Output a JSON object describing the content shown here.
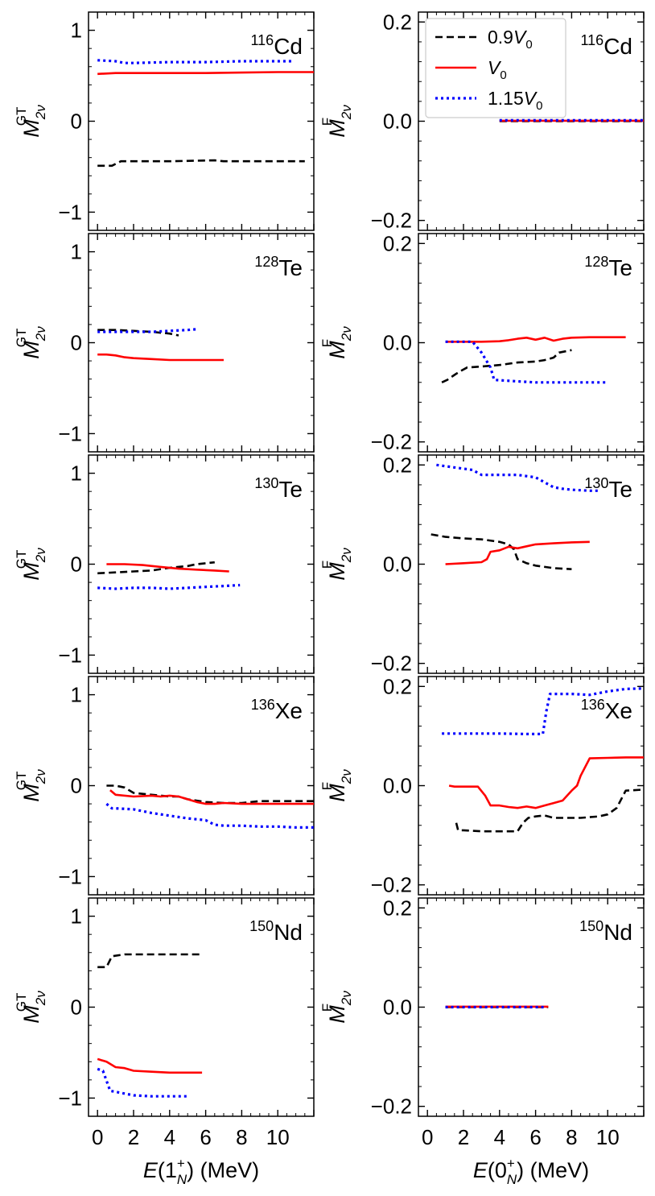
{
  "figure": {
    "left_xlabel": "E(1N+) (MeV)",
    "right_xlabel": "E(0N+) (MeV)",
    "left_ylabel": "M2νGT",
    "right_ylabel": "M2νF",
    "left_xticks": [
      "0",
      "2",
      "4",
      "6",
      "8",
      "10"
    ],
    "right_xticks": [
      "0",
      "2",
      "4",
      "6",
      "8",
      "10"
    ],
    "left_yticks": [
      "−1",
      "0",
      "1"
    ],
    "right_yticks": [
      "−0.2",
      "0.0",
      "0.2"
    ]
  },
  "legend": {
    "placement": "top-right panel, upper left",
    "entries": [
      {
        "label": "0.9V0",
        "series": "0.9V0"
      },
      {
        "label": "V0",
        "series": "V0"
      },
      {
        "label": "1.15V0",
        "series": "1.15V0"
      }
    ]
  },
  "series_styles": {
    "0.9V0": {
      "color": "#000000",
      "dash": "9,5",
      "width": 2.6
    },
    "V0": {
      "color": "#ff0000",
      "dash": "",
      "width": 2.6
    },
    "1.15V0": {
      "color": "#0000ff",
      "dash": "3,4",
      "width": 3.2
    }
  },
  "chart_data": [
    {
      "type": "line",
      "panel": "left",
      "row": 0,
      "nucleus": "116Cd",
      "mass": "116",
      "element": "Cd",
      "xlabel": "E(1N+) (MeV)",
      "ylabel": "M2νGT",
      "xlim": [
        -0.5,
        12
      ],
      "ylim": [
        -1.2,
        1.2
      ],
      "series": [
        {
          "name": "0.9V0",
          "x": [
            0,
            0.8,
            1.3,
            2,
            4,
            6.5,
            7,
            11.5
          ],
          "y": [
            -0.49,
            -0.49,
            -0.44,
            -0.44,
            -0.44,
            -0.43,
            -0.44,
            -0.44
          ]
        },
        {
          "name": "V0",
          "x": [
            0,
            1,
            2,
            4,
            6,
            8,
            10,
            12
          ],
          "y": [
            0.52,
            0.53,
            0.53,
            0.53,
            0.53,
            0.535,
            0.54,
            0.54
          ]
        },
        {
          "name": "1.15V0",
          "x": [
            0,
            1,
            1.5,
            2,
            4,
            6,
            8,
            10.8
          ],
          "y": [
            0.67,
            0.66,
            0.64,
            0.64,
            0.65,
            0.65,
            0.66,
            0.66
          ]
        }
      ]
    },
    {
      "type": "line",
      "panel": "right",
      "row": 0,
      "nucleus": "116Cd",
      "mass": "116",
      "element": "Cd",
      "xlabel": "E(0N+) (MeV)",
      "ylabel": "M2νF",
      "xlim": [
        -0.5,
        12
      ],
      "ylim": [
        -0.22,
        0.22
      ],
      "series": [
        {
          "name": "0.9V0",
          "x": [
            4.0,
            12
          ],
          "y": [
            0.0,
            0.0
          ]
        },
        {
          "name": "V0",
          "x": [
            4.0,
            12
          ],
          "y": [
            0.001,
            0.001
          ]
        },
        {
          "name": "1.15V0",
          "x": [
            4.0,
            12
          ],
          "y": [
            0.002,
            0.002
          ]
        }
      ]
    },
    {
      "type": "line",
      "panel": "left",
      "row": 1,
      "nucleus": "128Te",
      "mass": "128",
      "element": "Te",
      "xlabel": "E(1N+) (MeV)",
      "ylabel": "M2νGT",
      "xlim": [
        -0.5,
        12
      ],
      "ylim": [
        -1.2,
        1.2
      ],
      "series": [
        {
          "name": "0.9V0",
          "x": [
            0,
            1,
            2,
            3,
            4,
            4.5
          ],
          "y": [
            0.14,
            0.14,
            0.13,
            0.12,
            0.1,
            0.08
          ]
        },
        {
          "name": "V0",
          "x": [
            0,
            0.5,
            1,
            1.5,
            2,
            3,
            4,
            5,
            6,
            7
          ],
          "y": [
            -0.13,
            -0.13,
            -0.14,
            -0.16,
            -0.17,
            -0.18,
            -0.19,
            -0.19,
            -0.19,
            -0.19
          ]
        },
        {
          "name": "1.15V0",
          "x": [
            0,
            1,
            2,
            3,
            4,
            5,
            5.6
          ],
          "y": [
            0.12,
            0.12,
            0.12,
            0.12,
            0.13,
            0.14,
            0.15
          ]
        }
      ]
    },
    {
      "type": "line",
      "panel": "right",
      "row": 1,
      "nucleus": "128Te",
      "mass": "128",
      "element": "Te",
      "xlabel": "E(0N+) (MeV)",
      "ylabel": "M2νF",
      "xlim": [
        -0.5,
        12
      ],
      "ylim": [
        -0.22,
        0.22
      ],
      "series": [
        {
          "name": "0.9V0",
          "x": [
            0.8,
            1.1,
            1.3,
            1.5,
            1.8,
            2.2,
            3,
            4,
            5,
            6,
            6.5,
            7,
            7.3,
            8
          ],
          "y": [
            -0.08,
            -0.075,
            -0.07,
            -0.065,
            -0.058,
            -0.05,
            -0.048,
            -0.045,
            -0.04,
            -0.038,
            -0.035,
            -0.03,
            -0.02,
            -0.015
          ]
        },
        {
          "name": "V0",
          "x": [
            1,
            2,
            3,
            4,
            4.5,
            5,
            5.5,
            6,
            6.5,
            7,
            7.5,
            8,
            9,
            10,
            11
          ],
          "y": [
            0.002,
            0.002,
            0.002,
            0.003,
            0.005,
            0.008,
            0.01,
            0.006,
            0.01,
            0.004,
            0.008,
            0.01,
            0.011,
            0.011,
            0.011
          ]
        },
        {
          "name": "1.15V0",
          "x": [
            1,
            2.5,
            3,
            3.5,
            3.7,
            5,
            6,
            8,
            10
          ],
          "y": [
            0.002,
            0.002,
            -0.02,
            -0.05,
            -0.075,
            -0.078,
            -0.08,
            -0.08,
            -0.08
          ]
        }
      ]
    },
    {
      "type": "line",
      "panel": "left",
      "row": 2,
      "nucleus": "130Te",
      "mass": "130",
      "element": "Te",
      "xlabel": "E(1N+) (MeV)",
      "ylabel": "M2νGT",
      "xlim": [
        -0.5,
        12
      ],
      "ylim": [
        -1.2,
        1.2
      ],
      "series": [
        {
          "name": "0.9V0",
          "x": [
            0,
            1,
            2,
            3,
            4,
            5,
            5.5,
            6.5
          ],
          "y": [
            -0.1,
            -0.09,
            -0.08,
            -0.07,
            -0.04,
            -0.02,
            0.0,
            0.02
          ]
        },
        {
          "name": "V0",
          "x": [
            0.5,
            1.5,
            2.5,
            3.5,
            4.5,
            5.5,
            6.5,
            7.3
          ],
          "y": [
            0.0,
            0.0,
            -0.01,
            -0.03,
            -0.05,
            -0.06,
            -0.07,
            -0.08
          ]
        },
        {
          "name": "1.15V0",
          "x": [
            0,
            1,
            2,
            3,
            4,
            5,
            6,
            7,
            7.9
          ],
          "y": [
            -0.26,
            -0.27,
            -0.26,
            -0.26,
            -0.27,
            -0.26,
            -0.25,
            -0.24,
            -0.23
          ]
        }
      ]
    },
    {
      "type": "line",
      "panel": "right",
      "row": 2,
      "nucleus": "130Te",
      "mass": "130",
      "element": "Te",
      "xlabel": "E(0N+) (MeV)",
      "ylabel": "M2νF",
      "xlim": [
        -0.5,
        12
      ],
      "ylim": [
        -0.22,
        0.22
      ],
      "series": [
        {
          "name": "0.9V0",
          "x": [
            0.2,
            1,
            2,
            3,
            4,
            4.5,
            4.8,
            5,
            5.5,
            6,
            7,
            8
          ],
          "y": [
            0.06,
            0.055,
            0.052,
            0.05,
            0.045,
            0.04,
            0.03,
            0.01,
            0.002,
            -0.003,
            -0.008,
            -0.01
          ]
        },
        {
          "name": "V0",
          "x": [
            1,
            2,
            3,
            3.3,
            3.5,
            4,
            4.5,
            5,
            5.5,
            6,
            7,
            8,
            9
          ],
          "y": [
            0.0,
            0.002,
            0.004,
            0.01,
            0.025,
            0.028,
            0.035,
            0.032,
            0.036,
            0.04,
            0.042,
            0.044,
            0.045
          ]
        },
        {
          "name": "1.15V0",
          "x": [
            0.5,
            1.5,
            2.5,
            3,
            4,
            5,
            6,
            6.5,
            7,
            7.5,
            8,
            9,
            9.5
          ],
          "y": [
            0.2,
            0.195,
            0.19,
            0.18,
            0.18,
            0.18,
            0.175,
            0.165,
            0.155,
            0.152,
            0.15,
            0.148,
            0.148
          ]
        }
      ]
    },
    {
      "type": "line",
      "panel": "left",
      "row": 3,
      "nucleus": "136Xe",
      "mass": "136",
      "element": "Xe",
      "xlabel": "E(1N+) (MeV)",
      "ylabel": "M2νGT",
      "xlim": [
        -0.5,
        12
      ],
      "ylim": [
        -1.2,
        1.2
      ],
      "series": [
        {
          "name": "0.9V0",
          "x": [
            0.5,
            1,
            1.5,
            2,
            3,
            4,
            4.5,
            5,
            6,
            7,
            8,
            9,
            10,
            11,
            12
          ],
          "y": [
            0.0,
            0.0,
            -0.02,
            -0.08,
            -0.1,
            -0.12,
            -0.12,
            -0.15,
            -0.18,
            -0.19,
            -0.19,
            -0.17,
            -0.17,
            -0.17,
            -0.17
          ]
        },
        {
          "name": "V0",
          "x": [
            0.7,
            1,
            2,
            3,
            3.5,
            4,
            4.5,
            5,
            5.5,
            6,
            6.5,
            7,
            8,
            9,
            10,
            11,
            12
          ],
          "y": [
            -0.05,
            -0.1,
            -0.12,
            -0.11,
            -0.12,
            -0.11,
            -0.12,
            -0.15,
            -0.18,
            -0.2,
            -0.2,
            -0.19,
            -0.2,
            -0.2,
            -0.2,
            -0.2,
            -0.2
          ]
        },
        {
          "name": "1.15V0",
          "x": [
            0.5,
            0.8,
            1,
            2,
            3,
            4,
            5,
            6,
            6.5,
            7,
            8,
            9,
            10,
            11,
            12
          ],
          "y": [
            -0.2,
            -0.25,
            -0.25,
            -0.26,
            -0.3,
            -0.33,
            -0.36,
            -0.38,
            -0.43,
            -0.44,
            -0.44,
            -0.45,
            -0.45,
            -0.46,
            -0.46
          ]
        }
      ]
    },
    {
      "type": "line",
      "panel": "right",
      "row": 3,
      "nucleus": "136Xe",
      "mass": "136",
      "element": "Xe",
      "xlabel": "E(0N+) (MeV)",
      "ylabel": "M2νF",
      "xlim": [
        -0.5,
        12
      ],
      "ylim": [
        -0.22,
        0.22
      ],
      "series": [
        {
          "name": "0.9V0",
          "x": [
            1.6,
            1.7,
            2,
            3,
            4,
            5,
            5.3,
            5.6,
            6,
            6.5,
            7,
            7.5,
            8.5,
            9.5,
            10,
            10.5,
            11,
            12
          ],
          "y": [
            -0.075,
            -0.09,
            -0.09,
            -0.092,
            -0.092,
            -0.092,
            -0.075,
            -0.065,
            -0.062,
            -0.06,
            -0.065,
            -0.065,
            -0.065,
            -0.062,
            -0.058,
            -0.045,
            -0.01,
            -0.008
          ]
        },
        {
          "name": "V0",
          "x": [
            1.2,
            1.5,
            2,
            2.8,
            3.2,
            3.5,
            4,
            4.5,
            5,
            5.5,
            6,
            6.5,
            7,
            7.5,
            8,
            8.3,
            8.5,
            9,
            10,
            11,
            12
          ],
          "y": [
            0.0,
            -0.002,
            -0.002,
            -0.002,
            -0.02,
            -0.04,
            -0.04,
            -0.043,
            -0.045,
            -0.042,
            -0.045,
            -0.04,
            -0.035,
            -0.03,
            -0.01,
            0.0,
            0.02,
            0.055,
            0.056,
            0.057,
            0.057
          ]
        },
        {
          "name": "1.15V0",
          "x": [
            0.8,
            2,
            4,
            5.5,
            6.4,
            6.6,
            6.8,
            8,
            9,
            10,
            11,
            12
          ],
          "y": [
            0.105,
            0.105,
            0.105,
            0.104,
            0.104,
            0.15,
            0.185,
            0.185,
            0.183,
            0.19,
            0.195,
            0.196
          ]
        }
      ]
    },
    {
      "type": "line",
      "panel": "left",
      "row": 4,
      "nucleus": "150Nd",
      "mass": "150",
      "element": "Nd",
      "xlabel": "E(1N+) (MeV)",
      "ylabel": "M2νGT",
      "xlim": [
        -0.5,
        12
      ],
      "ylim": [
        -1.2,
        1.2
      ],
      "series": [
        {
          "name": "0.9V0",
          "x": [
            0,
            0.5,
            0.8,
            1.5,
            3,
            5.8
          ],
          "y": [
            0.44,
            0.44,
            0.56,
            0.58,
            0.58,
            0.58
          ]
        },
        {
          "name": "V0",
          "x": [
            0,
            0.5,
            1,
            1.5,
            2,
            3,
            4,
            5,
            5.8
          ],
          "y": [
            -0.57,
            -0.6,
            -0.66,
            -0.67,
            -0.7,
            -0.71,
            -0.72,
            -0.72,
            -0.72
          ]
        },
        {
          "name": "1.15V0",
          "x": [
            0,
            0.3,
            0.7,
            1.5,
            2,
            3,
            5
          ],
          "y": [
            -0.68,
            -0.7,
            -0.92,
            -0.95,
            -0.97,
            -0.98,
            -0.98
          ]
        }
      ]
    },
    {
      "type": "line",
      "panel": "right",
      "row": 4,
      "nucleus": "150Nd",
      "mass": "150",
      "element": "Nd",
      "xlabel": "E(0N+) (MeV)",
      "ylabel": "M2νF",
      "xlim": [
        -0.5,
        12
      ],
      "ylim": [
        -0.22,
        0.22
      ],
      "series": [
        {
          "name": "0.9V0",
          "x": [
            1.0,
            6.7
          ],
          "y": [
            0.0,
            0.0
          ]
        },
        {
          "name": "V0",
          "x": [
            1.0,
            6.7
          ],
          "y": [
            0.001,
            0.001
          ]
        },
        {
          "name": "1.15V0",
          "x": [
            1.0,
            6.5
          ],
          "y": [
            0.0,
            0.0
          ]
        }
      ]
    }
  ]
}
